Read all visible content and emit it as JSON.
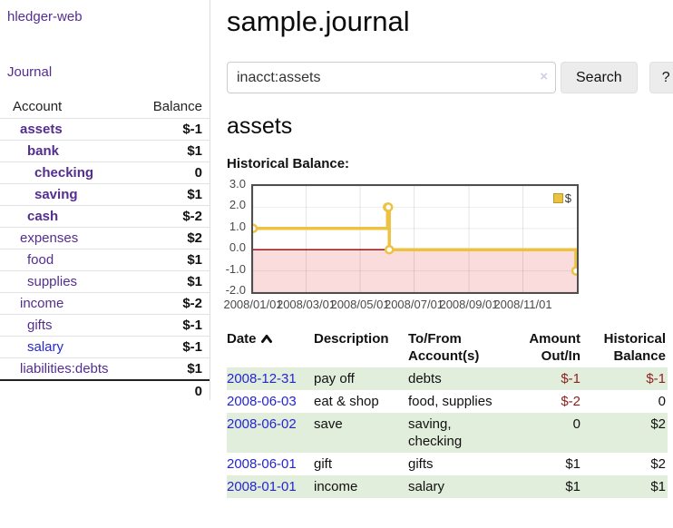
{
  "app": {
    "brand": "hledger-web",
    "nav_journal": "Journal"
  },
  "sidebar": {
    "accounts_header": {
      "account": "Account",
      "balance": "Balance"
    },
    "accounts": [
      {
        "name": "assets",
        "depth": 1,
        "bold": true,
        "balance": "$-1",
        "neg": "strong"
      },
      {
        "name": "bank",
        "depth": 2,
        "bold": true,
        "balance": "$1"
      },
      {
        "name": "checking",
        "depth": 3,
        "bold": true,
        "balance": "0"
      },
      {
        "name": "saving",
        "depth": 3,
        "bold": true,
        "balance": "$1"
      },
      {
        "name": "cash",
        "depth": 2,
        "bold": true,
        "balance": "$-2",
        "neg": "strong"
      },
      {
        "name": "expenses",
        "depth": 1,
        "bold": false,
        "balance": "$2"
      },
      {
        "name": "food",
        "depth": 2,
        "bold": false,
        "balance": "$1"
      },
      {
        "name": "supplies",
        "depth": 2,
        "bold": false,
        "balance": "$1"
      },
      {
        "name": "income",
        "depth": 1,
        "bold": false,
        "balance": "$-2",
        "neg": "soft"
      },
      {
        "name": "gifts",
        "depth": 2,
        "bold": false,
        "balance": "$-1",
        "neg": "soft"
      },
      {
        "name": "salary",
        "depth": 2,
        "bold": false,
        "balance": "$-1",
        "neg": "soft",
        "link_style": "blue"
      },
      {
        "name": "liabilities:debts",
        "depth": 1,
        "bold": false,
        "balance": "$1"
      }
    ],
    "total": "0"
  },
  "header": {
    "title": "sample.journal"
  },
  "search": {
    "value": "inacct:assets",
    "clear_icon": "×",
    "button": "Search",
    "help_button": "?"
  },
  "account_page": {
    "heading": "assets",
    "chart_label": "Historical Balance:"
  },
  "chart_data": {
    "type": "line",
    "title": "Historical Balance",
    "step": true,
    "series": [
      {
        "name": "$",
        "color": "#edc240",
        "points": [
          [
            "2008-01-01",
            1
          ],
          [
            "2008-06-01",
            2
          ],
          [
            "2008-06-02",
            2
          ],
          [
            "2008-06-03",
            0
          ],
          [
            "2008-12-31",
            -1
          ]
        ]
      }
    ],
    "x_domain": [
      "2008-01-01",
      "2009-01-01"
    ],
    "x_ticks": [
      {
        "label": "2008/01/01",
        "date": "2008-01-01"
      },
      {
        "label": "2008/03/01",
        "date": "2008-03-01"
      },
      {
        "label": "2008/05/01",
        "date": "2008-05-01"
      },
      {
        "label": "2008/07/01",
        "date": "2008-07-01"
      },
      {
        "label": "2008/09/01",
        "date": "2008-09-01"
      },
      {
        "label": "2008/11/01",
        "date": "2008-11-01"
      }
    ],
    "y_ticks": [
      {
        "label": "3.0",
        "v": 3
      },
      {
        "label": "2.0",
        "v": 2
      },
      {
        "label": "1.0",
        "v": 1
      },
      {
        "label": "0.0",
        "v": 0
      },
      {
        "label": "-1.0",
        "v": -1
      },
      {
        "label": "-2.0",
        "v": -2
      }
    ],
    "ylim": [
      -2,
      3
    ],
    "grid": true,
    "negative_region_color": "#fadcdc",
    "zero_line_color": "#8b0000",
    "legend": {
      "label": "$",
      "position": "top-right"
    }
  },
  "transactions": {
    "columns": [
      "Date",
      "Description",
      "To/From Account(s)",
      "Amount Out/In",
      "Historical Balance"
    ],
    "rows": [
      {
        "date": "2008-12-31",
        "description": "pay off",
        "accounts": "debts",
        "amount": "$-1",
        "amount_neg": true,
        "balance": "$-1",
        "balance_neg": true,
        "stripe": true
      },
      {
        "date": "2008-06-03",
        "description": "eat & shop",
        "accounts": "food, supplies",
        "amount": "$-2",
        "amount_neg": true,
        "balance": "0",
        "balance_neg": false,
        "stripe": false
      },
      {
        "date": "2008-06-02",
        "description": "save",
        "accounts": "saving, checking",
        "amount": "0",
        "amount_neg": false,
        "balance": "$2",
        "balance_neg": false,
        "stripe": true
      },
      {
        "date": "2008-06-01",
        "description": "gift",
        "accounts": "gifts",
        "amount": "$1",
        "amount_neg": false,
        "balance": "$2",
        "balance_neg": false,
        "stripe": false
      },
      {
        "date": "2008-01-01",
        "description": "income",
        "accounts": "salary",
        "amount": "$1",
        "amount_neg": false,
        "balance": "$1",
        "balance_neg": false,
        "stripe": true
      }
    ]
  }
}
